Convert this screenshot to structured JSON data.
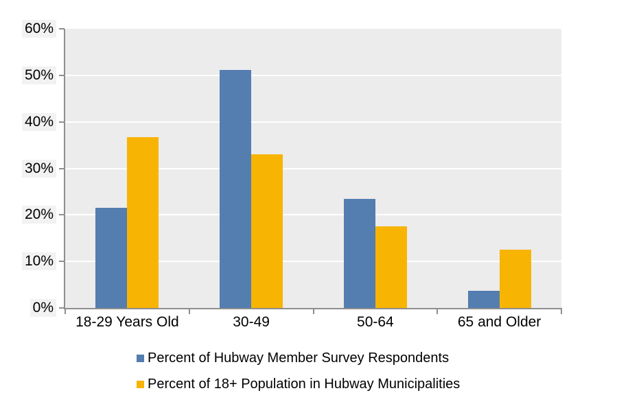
{
  "chart_data": {
    "type": "bar",
    "title": "",
    "categories": [
      "18-29 Years Old",
      "30-49",
      "50-64",
      "65 and Older"
    ],
    "series": [
      {
        "name": "Percent of Hubway Member Survey Respondents",
        "color": "#547DB0",
        "values": [
          21.5,
          51.2,
          23.5,
          3.7
        ]
      },
      {
        "name": "Percent of 18+ Population in Hubway Municipalities",
        "color": "#F7B402",
        "values": [
          36.7,
          33.0,
          17.6,
          12.6
        ]
      }
    ],
    "xlabel": "",
    "ylabel": "",
    "ylim": [
      0,
      60
    ],
    "ytick_step": 10,
    "ytick_labels": [
      "0%",
      "10%",
      "20%",
      "30%",
      "40%",
      "50%",
      "60%"
    ],
    "grid": true,
    "legend_position": "bottom",
    "plot_background": "#ECECEC",
    "gridline_color": "#FFFFFF",
    "axis_color": "#8E8E8E",
    "ytick_label_background": "#F2F2F2"
  }
}
